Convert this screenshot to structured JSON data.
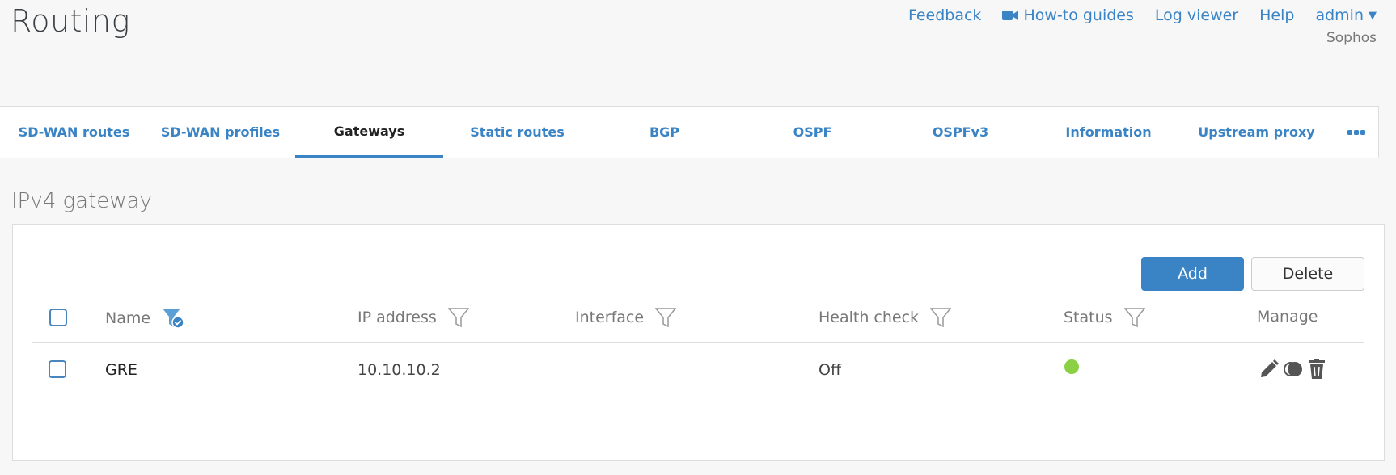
{
  "header": {
    "title": "Routing",
    "links": [
      "Feedback",
      "How-to guides",
      "Log viewer",
      "Help",
      "admin"
    ],
    "org": "Sophos"
  },
  "tabs": [
    {
      "label": "SD-WAN routes"
    },
    {
      "label": "SD-WAN profiles"
    },
    {
      "label": "Gateways",
      "active": true
    },
    {
      "label": "Static routes"
    },
    {
      "label": "BGP"
    },
    {
      "label": "OSPF"
    },
    {
      "label": "OSPFv3"
    },
    {
      "label": "Information"
    },
    {
      "label": "Upstream proxy"
    }
  ],
  "section": {
    "title": "IPv4 gateway"
  },
  "buttons": {
    "add": "Add",
    "delete": "Delete"
  },
  "table": {
    "columns": [
      "Name",
      "IP address",
      "Interface",
      "Health check",
      "Status",
      "Manage"
    ],
    "rows": [
      {
        "name": "GRE",
        "ip": "10.10.10.2",
        "interface": "",
        "health_check": "Off",
        "status": "active",
        "status_color": "#8bcf45"
      }
    ]
  },
  "colors": {
    "accent": "#3a84c6",
    "status_ok": "#8bcf45"
  }
}
